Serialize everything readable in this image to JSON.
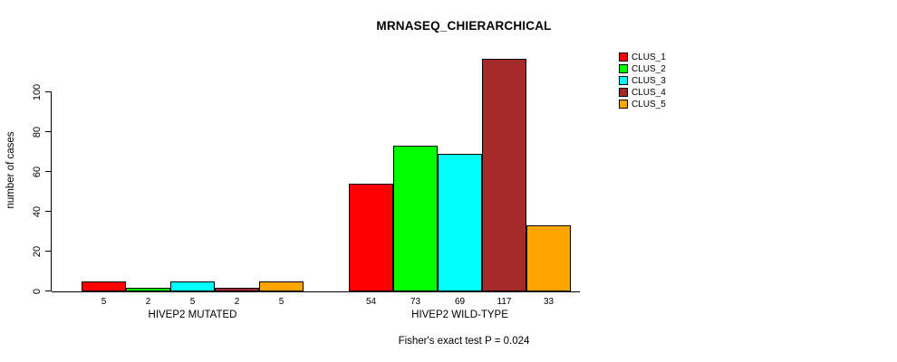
{
  "chart_data": {
    "type": "bar",
    "title": "MRNASEQ_CHIERARCHICAL",
    "xlabel": "",
    "ylabel": "number of cases",
    "yticks": [
      0,
      20,
      40,
      60,
      80,
      100
    ],
    "ylim": [
      0,
      120
    ],
    "grid": false,
    "legend_position": "top-right",
    "categories": [
      "HIVEP2 MUTATED",
      "HIVEP2 WILD-TYPE"
    ],
    "series": [
      {
        "name": "CLUS_1",
        "color": "#FF0000",
        "values": [
          5,
          54
        ]
      },
      {
        "name": "CLUS_2",
        "color": "#00FF00",
        "values": [
          2,
          73
        ]
      },
      {
        "name": "CLUS_3",
        "color": "#00FFFF",
        "values": [
          5,
          69
        ]
      },
      {
        "name": "CLUS_4",
        "color": "#A52A2A",
        "values": [
          2,
          117
        ]
      },
      {
        "name": "CLUS_5",
        "color": "#FFA500",
        "values": [
          5,
          33
        ]
      }
    ],
    "bar_value_labels": [
      [
        5,
        2,
        5,
        2,
        5
      ],
      [
        54,
        73,
        69,
        117,
        33
      ]
    ],
    "annotation": "Fisher's exact test P = 0.024"
  }
}
